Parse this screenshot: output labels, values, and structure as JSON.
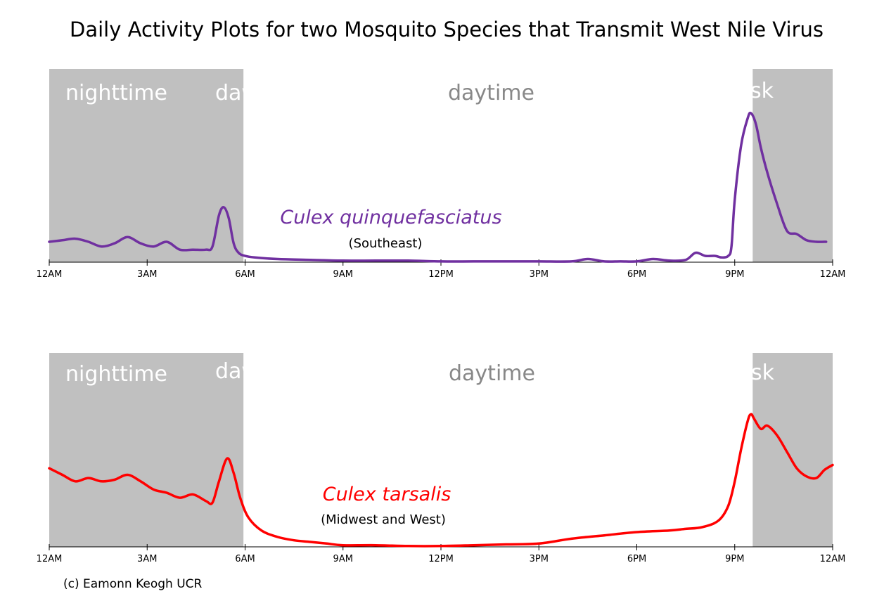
{
  "title": "Daily Activity Plots for two Mosquito Species that Transmit West Nile Virus",
  "credit": "(c) Eamonn Keogh UCR",
  "colors": {
    "shade": "#c0c0c0",
    "quinque": "#7030a0",
    "tarsalis": "#ff0000",
    "day_label": "#888888"
  },
  "chart_data": [
    {
      "type": "line",
      "title": "",
      "species": "Culex quinquefasciatus",
      "range": "(Southeast)",
      "color": "#7030a0",
      "x_unit": "hours after midnight",
      "xlim": [
        0,
        24
      ],
      "ylim": [
        0,
        100
      ],
      "xticks": [
        0,
        3,
        6,
        9,
        12,
        15,
        18,
        21,
        24
      ],
      "xtick_labels": [
        "12AM",
        "3AM",
        "6AM",
        "9AM",
        "12PM",
        "3PM",
        "6PM",
        "9PM",
        "12AM"
      ],
      "shaded_regions": [
        [
          0,
          5.95
        ],
        [
          21.55,
          24
        ]
      ],
      "region_labels": [
        "nighttime",
        "dawn",
        "daytime",
        "dusk"
      ],
      "series": [
        {
          "x": [
            0,
            0.4,
            0.8,
            1.2,
            1.6,
            2.0,
            2.4,
            2.8,
            3.2,
            3.6,
            4.0,
            4.4,
            4.8,
            5.0,
            5.2,
            5.35,
            5.5,
            5.65,
            5.8,
            6.0,
            6.3,
            7.0,
            8.0,
            9.0,
            10.0,
            11.0,
            12.0,
            13.0,
            14.0,
            15.0,
            16.0,
            16.5,
            17.0,
            17.5,
            18.0,
            18.5,
            19.0,
            19.5,
            19.8,
            20.1,
            20.4,
            20.6,
            20.8,
            20.9,
            21.0,
            21.2,
            21.4,
            21.5,
            21.65,
            21.8,
            22.0,
            22.3,
            22.6,
            22.9,
            23.2,
            23.5,
            23.8
          ],
          "y": [
            13,
            14,
            15,
            13,
            10,
            12,
            16,
            12,
            10,
            13,
            8,
            8,
            8,
            10,
            30,
            35,
            28,
            12,
            6,
            4,
            3,
            2,
            1.5,
            1,
            1,
            1,
            0.5,
            0.5,
            0.5,
            0.5,
            0.5,
            2,
            0.5,
            0.5,
            0.5,
            2,
            1,
            1.5,
            6,
            4,
            4,
            3,
            4,
            10,
            40,
            75,
            92,
            95,
            88,
            73,
            57,
            37,
            20,
            18,
            14,
            13,
            13
          ]
        }
      ]
    },
    {
      "type": "line",
      "title": "",
      "species": "Culex tarsalis",
      "range": "(Midwest and West)",
      "color": "#ff0000",
      "x_unit": "hours after midnight",
      "xlim": [
        0,
        24
      ],
      "ylim": [
        0,
        100
      ],
      "xticks": [
        0,
        3,
        6,
        9,
        12,
        15,
        18,
        21,
        24
      ],
      "xtick_labels": [
        "12AM",
        "3AM",
        "6AM",
        "9AM",
        "12PM",
        "3PM",
        "6PM",
        "9PM",
        "12AM"
      ],
      "shaded_regions": [
        [
          0,
          5.95
        ],
        [
          21.55,
          24
        ]
      ],
      "region_labels": [
        "nighttime",
        "dawn",
        "daytime",
        "dusk"
      ],
      "series": [
        {
          "x": [
            0,
            0.4,
            0.8,
            1.2,
            1.6,
            2.0,
            2.4,
            2.8,
            3.2,
            3.6,
            4.0,
            4.4,
            4.8,
            5.0,
            5.2,
            5.45,
            5.65,
            5.85,
            6.1,
            6.5,
            7.0,
            7.5,
            8.0,
            8.5,
            9.0,
            10.0,
            11.0,
            12.0,
            13.0,
            14.0,
            15.0,
            16.0,
            17.0,
            18.0,
            19.0,
            19.5,
            20.0,
            20.5,
            20.8,
            21.0,
            21.2,
            21.4,
            21.5,
            21.6,
            21.8,
            22.0,
            22.3,
            22.6,
            22.9,
            23.2,
            23.5,
            23.75,
            24.0
          ],
          "y": [
            48,
            44,
            40,
            42,
            40,
            41,
            44,
            40,
            35,
            33,
            30,
            32,
            28,
            27,
            40,
            54,
            45,
            30,
            18,
            10,
            6,
            4,
            3,
            2,
            1,
            1,
            0.5,
            0.5,
            1,
            1.5,
            2,
            5,
            7,
            9,
            10,
            11,
            12,
            16,
            25,
            40,
            60,
            77,
            81,
            78,
            72,
            74,
            68,
            58,
            48,
            43,
            42,
            47,
            50
          ]
        }
      ]
    }
  ]
}
